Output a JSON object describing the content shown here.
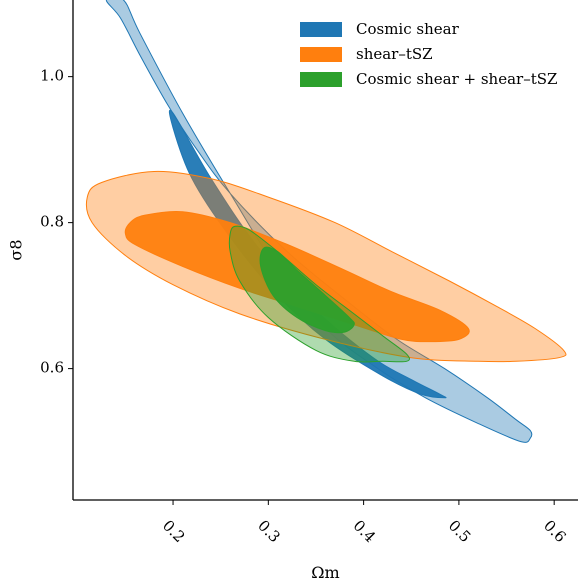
{
  "chart_data": {
    "type": "contour",
    "xlabel": "Ωm",
    "ylabel": "σ8",
    "xlim": [
      0.095,
      0.625
    ],
    "ylim": [
      0.42,
      1.105
    ],
    "x_ticks": [
      {
        "value": 0.2,
        "label": "0.2"
      },
      {
        "value": 0.3,
        "label": "0.3"
      },
      {
        "value": 0.4,
        "label": "0.4"
      },
      {
        "value": 0.5,
        "label": "0.5"
      },
      {
        "value": 0.6,
        "label": "0.6"
      }
    ],
    "y_ticks": [
      {
        "value": 0.6,
        "label": "0.6"
      },
      {
        "value": 0.8,
        "label": "0.8"
      },
      {
        "value": 1.0,
        "label": "1.0"
      }
    ],
    "grid": false,
    "legend_position": "top-right",
    "series": [
      {
        "name": "Cosmic shear",
        "color": "#1f77b4",
        "contours": [
          {
            "level": "outer",
            "points": [
              [
                0.148,
                1.105
              ],
              [
                0.165,
                1.06
              ],
              [
                0.21,
                0.95
              ],
              [
                0.26,
                0.84
              ],
              [
                0.31,
                0.735
              ],
              [
                0.36,
                0.655
              ],
              [
                0.415,
                0.6
              ],
              [
                0.465,
                0.56
              ],
              [
                0.52,
                0.525
              ],
              [
                0.565,
                0.5
              ],
              [
                0.575,
                0.505
              ],
              [
                0.575,
                0.515
              ],
              [
                0.56,
                0.53
              ],
              [
                0.53,
                0.56
              ],
              [
                0.485,
                0.6
              ],
              [
                0.435,
                0.64
              ],
              [
                0.385,
                0.69
              ],
              [
                0.32,
                0.76
              ],
              [
                0.26,
                0.84
              ],
              [
                0.225,
                0.9
              ],
              [
                0.195,
                0.96
              ],
              [
                0.165,
                1.03
              ],
              [
                0.145,
                1.08
              ],
              [
                0.13,
                1.105
              ]
            ]
          },
          {
            "level": "inner",
            "points": [
              [
                0.2,
                0.95
              ],
              [
                0.24,
                0.86
              ],
              [
                0.29,
                0.765
              ],
              [
                0.35,
                0.68
              ],
              [
                0.41,
                0.615
              ],
              [
                0.45,
                0.585
              ],
              [
                0.48,
                0.565
              ],
              [
                0.485,
                0.56
              ],
              [
                0.46,
                0.565
              ],
              [
                0.42,
                0.59
              ],
              [
                0.36,
                0.64
              ],
              [
                0.31,
                0.7
              ],
              [
                0.26,
                0.78
              ],
              [
                0.22,
                0.86
              ],
              [
                0.2,
                0.93
              ]
            ]
          }
        ]
      },
      {
        "name": "shear–tSZ",
        "color": "#ff7f0e",
        "contours": [
          {
            "level": "outer",
            "points": [
              [
                0.11,
                0.835
              ],
              [
                0.125,
                0.855
              ],
              [
                0.18,
                0.87
              ],
              [
                0.24,
                0.86
              ],
              [
                0.3,
                0.835
              ],
              [
                0.37,
                0.8
              ],
              [
                0.43,
                0.76
              ],
              [
                0.49,
                0.72
              ],
              [
                0.54,
                0.685
              ],
              [
                0.58,
                0.655
              ],
              [
                0.61,
                0.625
              ],
              [
                0.605,
                0.615
              ],
              [
                0.56,
                0.61
              ],
              [
                0.52,
                0.61
              ],
              [
                0.45,
                0.615
              ],
              [
                0.36,
                0.64
              ],
              [
                0.27,
                0.675
              ],
              [
                0.2,
                0.715
              ],
              [
                0.15,
                0.755
              ],
              [
                0.115,
                0.8
              ]
            ]
          },
          {
            "level": "inner",
            "points": [
              [
                0.155,
                0.8
              ],
              [
                0.17,
                0.81
              ],
              [
                0.21,
                0.815
              ],
              [
                0.26,
                0.8
              ],
              [
                0.32,
                0.77
              ],
              [
                0.38,
                0.735
              ],
              [
                0.43,
                0.705
              ],
              [
                0.48,
                0.68
              ],
              [
                0.51,
                0.655
              ],
              [
                0.5,
                0.64
              ],
              [
                0.47,
                0.637
              ],
              [
                0.44,
                0.64
              ],
              [
                0.39,
                0.66
              ],
              [
                0.33,
                0.685
              ],
              [
                0.27,
                0.71
              ],
              [
                0.21,
                0.74
              ],
              [
                0.16,
                0.77
              ],
              [
                0.15,
                0.785
              ]
            ]
          }
        ]
      },
      {
        "name": "Cosmic shear + shear–tSZ",
        "color": "#2ca02c",
        "contours": [
          {
            "level": "outer",
            "points": [
              [
                0.26,
                0.785
              ],
              [
                0.265,
                0.795
              ],
              [
                0.28,
                0.79
              ],
              [
                0.31,
                0.76
              ],
              [
                0.35,
                0.715
              ],
              [
                0.39,
                0.675
              ],
              [
                0.42,
                0.645
              ],
              [
                0.445,
                0.62
              ],
              [
                0.445,
                0.61
              ],
              [
                0.42,
                0.61
              ],
              [
                0.39,
                0.61
              ],
              [
                0.35,
                0.625
              ],
              [
                0.3,
                0.67
              ],
              [
                0.27,
                0.72
              ],
              [
                0.26,
                0.76
              ]
            ]
          },
          {
            "level": "inner",
            "points": [
              [
                0.295,
                0.765
              ],
              [
                0.31,
                0.76
              ],
              [
                0.33,
                0.735
              ],
              [
                0.36,
                0.7
              ],
              [
                0.385,
                0.67
              ],
              [
                0.39,
                0.66
              ],
              [
                0.38,
                0.65
              ],
              [
                0.36,
                0.652
              ],
              [
                0.33,
                0.67
              ],
              [
                0.305,
                0.7
              ],
              [
                0.292,
                0.74
              ]
            ]
          }
        ]
      }
    ]
  }
}
